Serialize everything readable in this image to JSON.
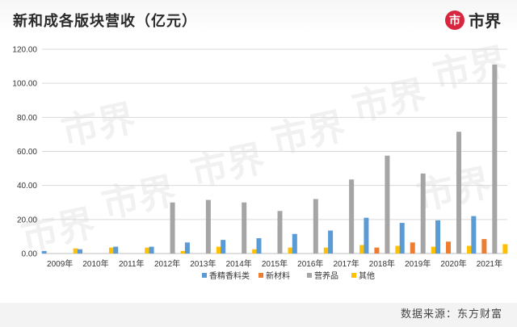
{
  "header": {
    "title": "新和成各版块营收（亿元）",
    "logo_text": "市界",
    "logo_glyph": "市"
  },
  "watermark": {
    "text": "市界"
  },
  "footer": {
    "source": "数据来源：东方财富"
  },
  "colors": {
    "香精香料类": "#5b9bd5",
    "新材料": "#ed7d31",
    "营养品": "#a5a5a5",
    "其他": "#ffc000",
    "grid": "#d9d9d9",
    "axis": "#bfbfbf"
  },
  "chart_data": {
    "type": "bar",
    "title": "新和成各版块营收（亿元）",
    "xlabel": "",
    "ylabel": "",
    "ylim": [
      0,
      120
    ],
    "y_ticks": [
      0,
      20,
      40,
      60,
      80,
      100,
      120
    ],
    "y_tick_labels": [
      "0.00",
      "20.00",
      "40.00",
      "60.00",
      "80.00",
      "100.00",
      "120.00"
    ],
    "grid": true,
    "legend_position": "bottom",
    "categories": [
      "2009年",
      "2010年",
      "2011年",
      "2012年",
      "2013年",
      "2014年",
      "2015年",
      "2016年",
      "2017年",
      "2018年",
      "2019年",
      "2020年",
      "2021年"
    ],
    "series": [
      {
        "name": "香精香料类",
        "values": [
          1.5,
          2.5,
          4.0,
          4.0,
          6.5,
          8.0,
          9.0,
          11.5,
          13.5,
          21.0,
          18.0,
          19.5,
          22.0
        ]
      },
      {
        "name": "新材料",
        "values": [
          0,
          0,
          0,
          0,
          0,
          0,
          0,
          0,
          0,
          3.5,
          6.5,
          7.0,
          8.5
        ]
      },
      {
        "name": "营养品",
        "values": [
          0,
          0,
          0,
          30.0,
          31.5,
          30.0,
          25.0,
          32.0,
          43.5,
          57.5,
          47.0,
          71.5,
          111.0
        ]
      },
      {
        "name": "其他",
        "values": [
          3.0,
          3.5,
          3.5,
          1.5,
          4.0,
          2.5,
          3.5,
          3.5,
          5.0,
          4.5,
          4.0,
          4.5,
          5.5
        ]
      }
    ]
  }
}
